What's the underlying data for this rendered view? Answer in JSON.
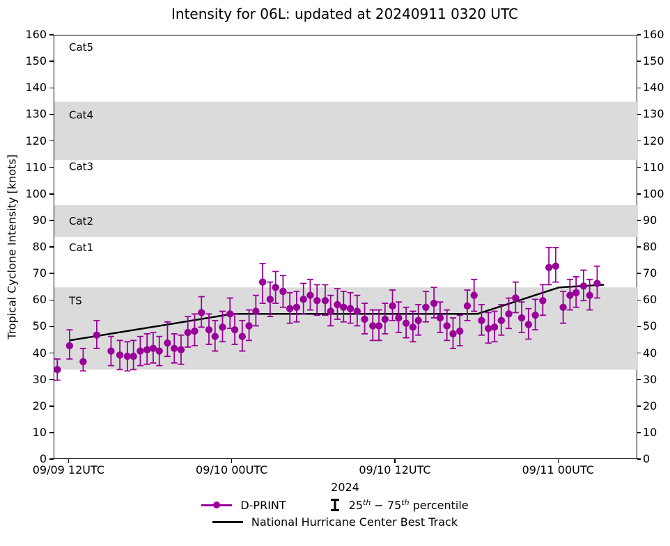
{
  "title": "Intensity for 06L: updated at 20240911 0320 UTC",
  "colors": {
    "dprint": "#990099",
    "best_track": "#000000",
    "band_gray": "#dbdbdb",
    "spine": "#000000"
  },
  "axes": {
    "ylabel": "Tropical Cyclone Intensity [knots]",
    "year_label": "2024",
    "ylim": [
      0,
      160
    ],
    "y_ticks": [
      0,
      10,
      20,
      30,
      40,
      50,
      60,
      70,
      80,
      90,
      100,
      110,
      120,
      130,
      140,
      150,
      160
    ],
    "xlim_hours": [
      -1.12,
      41.8
    ],
    "x_ticks": [
      {
        "t": 0,
        "label": "09/09 12UTC"
      },
      {
        "t": 12,
        "label": "09/10 00UTC"
      },
      {
        "t": 24,
        "label": "09/10 12UTC"
      },
      {
        "t": 36,
        "label": "09/11 00UTC"
      }
    ]
  },
  "category_bands": [
    {
      "label": "Cat5",
      "from": 135,
      "to": 160,
      "shaded": false,
      "label_v": 155.5
    },
    {
      "label": "Cat4",
      "from": 113,
      "to": 135,
      "shaded": true,
      "label_v": 130
    },
    {
      "label": "Cat3",
      "from": 96,
      "to": 113,
      "shaded": false,
      "label_v": 110.5
    },
    {
      "label": "Cat2",
      "from": 84,
      "to": 96,
      "shaded": true,
      "label_v": 90
    },
    {
      "label": "Cat1",
      "from": 65,
      "to": 84,
      "shaded": false,
      "label_v": 80
    },
    {
      "label": "TS",
      "from": 34,
      "to": 65,
      "shaded": true,
      "label_v": 60
    }
  ],
  "chart_data": {
    "type": "scatter",
    "x_units": "hours since 2024-09-09 12:00 UTC",
    "y_units": "knots",
    "series": [
      {
        "name": "D-PRINT",
        "style": "markers with 25th-75th percentile error bars",
        "points_tvlh": [
          [
            -0.9,
            34,
            30,
            38
          ],
          [
            0.0,
            43,
            38,
            49
          ],
          [
            1.0,
            37,
            33.5,
            42
          ],
          [
            2.0,
            47,
            42,
            52.5
          ],
          [
            3.05,
            41,
            35.5,
            46.5
          ],
          [
            3.7,
            39.5,
            34,
            45
          ],
          [
            4.25,
            39,
            33.5,
            44.5
          ],
          [
            4.7,
            39,
            34,
            45
          ],
          [
            5.2,
            41,
            35.5,
            46.5
          ],
          [
            5.7,
            41.5,
            36,
            47.5
          ],
          [
            6.15,
            42,
            36.5,
            48
          ],
          [
            6.6,
            41,
            35.5,
            46.5
          ],
          [
            7.2,
            44,
            39,
            52
          ],
          [
            7.7,
            42,
            36.5,
            47.5
          ],
          [
            8.2,
            41.5,
            36,
            47
          ],
          [
            8.7,
            48,
            42.5,
            54
          ],
          [
            9.2,
            48.5,
            43,
            55
          ],
          [
            9.7,
            55.5,
            50,
            61.5
          ],
          [
            10.25,
            49,
            43.5,
            55
          ],
          [
            10.7,
            46.5,
            41,
            52.5
          ],
          [
            11.25,
            50,
            44.5,
            56
          ],
          [
            11.8,
            55,
            49.5,
            61
          ],
          [
            12.15,
            49,
            43.5,
            55
          ],
          [
            12.7,
            46.5,
            41,
            52.5
          ],
          [
            13.2,
            50.5,
            45,
            56.5
          ],
          [
            13.7,
            56,
            50.5,
            62
          ],
          [
            14.2,
            67,
            59,
            74
          ],
          [
            14.75,
            60.5,
            54,
            67
          ],
          [
            15.15,
            65,
            59,
            71
          ],
          [
            15.7,
            63.5,
            57.5,
            69.5
          ],
          [
            16.2,
            57,
            51.5,
            63
          ],
          [
            16.7,
            57.5,
            52,
            63.5
          ],
          [
            17.2,
            60.5,
            55,
            66.5
          ],
          [
            17.7,
            62,
            56.5,
            68
          ],
          [
            18.2,
            60,
            54.5,
            66
          ],
          [
            18.8,
            60,
            54.5,
            66
          ],
          [
            19.2,
            56,
            50.5,
            62
          ],
          [
            19.7,
            58.5,
            53,
            64.5
          ],
          [
            20.15,
            57.5,
            52,
            63.5
          ],
          [
            20.65,
            57,
            51.5,
            63
          ],
          [
            21.15,
            56,
            50.5,
            62
          ],
          [
            21.7,
            53,
            47.5,
            59
          ],
          [
            22.3,
            50.5,
            45,
            56.5
          ],
          [
            22.75,
            50.5,
            45,
            56.5
          ],
          [
            23.2,
            53,
            47.5,
            59
          ],
          [
            23.75,
            58,
            52.5,
            64
          ],
          [
            24.2,
            53.5,
            48,
            59.5
          ],
          [
            24.75,
            51.5,
            46,
            57.5
          ],
          [
            25.25,
            50,
            44.5,
            56
          ],
          [
            25.65,
            52.5,
            47,
            58.5
          ],
          [
            26.2,
            57.5,
            52,
            63.5
          ],
          [
            26.8,
            59,
            53.5,
            65
          ],
          [
            27.25,
            53.5,
            48,
            59.5
          ],
          [
            27.75,
            50.5,
            45,
            56.5
          ],
          [
            28.2,
            47.5,
            42,
            53.5
          ],
          [
            28.7,
            48.5,
            43,
            54.5
          ],
          [
            29.25,
            58,
            52.5,
            64
          ],
          [
            29.75,
            62,
            56,
            68
          ],
          [
            30.3,
            52.5,
            47,
            58.5
          ],
          [
            30.8,
            49.5,
            44,
            55.5
          ],
          [
            31.25,
            50,
            44.5,
            56
          ],
          [
            31.75,
            52.5,
            47,
            58.5
          ],
          [
            32.3,
            55,
            49.5,
            61
          ],
          [
            32.8,
            61,
            55.5,
            67
          ],
          [
            33.25,
            53.5,
            48,
            59.5
          ],
          [
            33.75,
            51,
            45.5,
            57
          ],
          [
            34.25,
            54.5,
            49,
            60.5
          ],
          [
            34.8,
            60,
            54.5,
            66
          ],
          [
            35.25,
            72.5,
            66,
            80
          ],
          [
            35.75,
            73,
            67,
            80
          ],
          [
            36.3,
            57.5,
            51.5,
            63.5
          ],
          [
            36.8,
            62,
            56.5,
            68
          ],
          [
            37.25,
            63,
            57.5,
            69
          ],
          [
            37.8,
            65.5,
            60,
            71.5
          ],
          [
            38.25,
            62,
            56.5,
            68
          ],
          [
            38.8,
            66.5,
            61,
            73
          ]
        ]
      },
      {
        "name": "National Hurricane Center Best Track",
        "style": "line",
        "points_tv": [
          [
            0,
            45
          ],
          [
            6,
            50
          ],
          [
            12,
            55
          ],
          [
            18,
            55
          ],
          [
            24,
            55
          ],
          [
            30,
            55
          ],
          [
            36,
            65
          ],
          [
            39.3,
            66
          ]
        ]
      }
    ]
  },
  "legend": {
    "dprint_label": "D-PRINT",
    "percentile": {
      "pre": "25",
      "sup1": "th",
      "mid": " − 75",
      "sup2": "th",
      "post": " percentile"
    },
    "best_track_label": "National Hurricane Center Best Track"
  }
}
